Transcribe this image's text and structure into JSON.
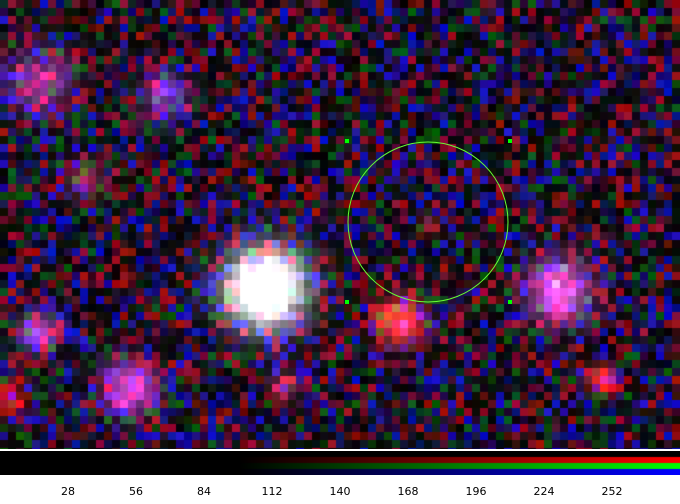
{
  "image": {
    "subject": "astronomical-false-color-rgb-composite",
    "background_color": "#000000",
    "sources": [
      {
        "name": "bright-white-star",
        "color": "#ffffff"
      },
      {
        "name": "red-white-source-below-circle",
        "color": "#ff3030"
      },
      {
        "name": "magenta-source-right",
        "color": "#ff60ff"
      },
      {
        "name": "magenta-source-lower-left",
        "color": "#ff50ff"
      },
      {
        "name": "red-source-lower-right",
        "color": "#ff2020"
      }
    ]
  },
  "overlay": {
    "region_circle_color": "#66ff33",
    "marker_color": "#00ff00"
  },
  "colorbar": {
    "channels": [
      {
        "name": "red",
        "color": "#ff0000"
      },
      {
        "name": "green",
        "color": "#00ff00"
      },
      {
        "name": "blue",
        "color": "#0000ff"
      }
    ],
    "tick_labels": [
      "28",
      "56",
      "84",
      "112",
      "140",
      "168",
      "196",
      "224",
      "252"
    ]
  }
}
